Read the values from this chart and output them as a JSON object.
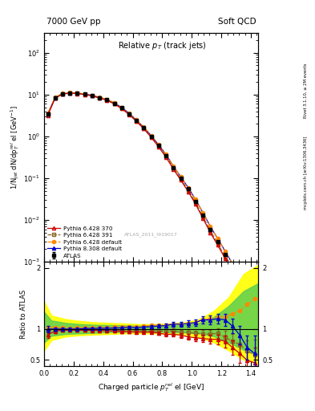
{
  "title_left": "7000 GeV pp",
  "title_right": "Soft QCD",
  "plot_title": "Relative $p_T$ (track jets)",
  "xlabel": "Charged particle $p_T^{rel}$ el [GeV]",
  "ylabel_main": "1/N$_{jet}$ dN/dp$_T^{rel}$ el [GeV$^{-1}$]",
  "ylabel_ratio": "Ratio to ATLAS",
  "watermark": "ATLAS_2011_I919017",
  "right_label": "mcplots.cern.ch [arXiv:1306.3436]",
  "right_label2": "Rivet 3.1.10, ≥ 2M events",
  "x_data": [
    0.025,
    0.075,
    0.125,
    0.175,
    0.225,
    0.275,
    0.325,
    0.375,
    0.425,
    0.475,
    0.525,
    0.575,
    0.625,
    0.675,
    0.725,
    0.775,
    0.825,
    0.875,
    0.925,
    0.975,
    1.025,
    1.075,
    1.125,
    1.175,
    1.225,
    1.275,
    1.325,
    1.375,
    1.425
  ],
  "atlas_y": [
    3.5,
    8.5,
    10.5,
    11.0,
    10.8,
    10.2,
    9.5,
    8.5,
    7.5,
    6.2,
    4.8,
    3.5,
    2.4,
    1.6,
    1.0,
    0.6,
    0.35,
    0.18,
    0.1,
    0.055,
    0.028,
    0.013,
    0.006,
    0.003,
    0.0015,
    0.0007,
    0.00035,
    0.00018,
    9e-05
  ],
  "atlas_yerr": [
    0.3,
    0.4,
    0.4,
    0.4,
    0.4,
    0.3,
    0.3,
    0.3,
    0.25,
    0.2,
    0.15,
    0.1,
    0.08,
    0.05,
    0.035,
    0.02,
    0.012,
    0.007,
    0.004,
    0.002,
    0.001,
    0.0005,
    0.0003,
    0.00015,
    8e-05,
    4e-05,
    2e-05,
    1e-05,
    6e-06
  ],
  "py6_370_y": [
    3.2,
    8.2,
    10.3,
    10.8,
    10.6,
    10.0,
    9.3,
    8.3,
    7.3,
    6.0,
    4.6,
    3.35,
    2.28,
    1.52,
    0.95,
    0.56,
    0.32,
    0.165,
    0.09,
    0.048,
    0.024,
    0.011,
    0.005,
    0.0025,
    0.0012,
    0.00055,
    0.00028,
    0.00014,
    6e-05
  ],
  "py6_391_y": [
    3.4,
    8.4,
    10.4,
    10.9,
    10.7,
    10.1,
    9.4,
    8.4,
    7.4,
    6.1,
    4.7,
    3.45,
    2.35,
    1.55,
    0.97,
    0.58,
    0.34,
    0.175,
    0.095,
    0.052,
    0.026,
    0.012,
    0.0055,
    0.0028,
    0.0013,
    0.0006,
    0.0003,
    0.00015,
    8e-05
  ],
  "py6_def_y": [
    3.6,
    8.7,
    10.7,
    11.2,
    11.0,
    10.4,
    9.7,
    8.7,
    7.7,
    6.4,
    5.0,
    3.65,
    2.5,
    1.68,
    1.06,
    0.64,
    0.375,
    0.195,
    0.108,
    0.06,
    0.031,
    0.015,
    0.007,
    0.0036,
    0.0018,
    0.0009,
    0.00046,
    0.00025,
    0.000135
  ],
  "py8_def_y": [
    3.5,
    8.5,
    10.5,
    11.0,
    10.8,
    10.3,
    9.6,
    8.6,
    7.6,
    6.3,
    4.9,
    3.6,
    2.45,
    1.65,
    1.04,
    0.63,
    0.37,
    0.195,
    0.108,
    0.06,
    0.031,
    0.015,
    0.007,
    0.0036,
    0.0018,
    0.0009,
    0.00046,
    0.00025,
    0.000135
  ],
  "ratio_py6_370": [
    0.91,
    0.965,
    0.981,
    0.982,
    0.981,
    0.98,
    0.979,
    0.976,
    0.973,
    0.968,
    0.958,
    0.957,
    0.95,
    0.95,
    0.95,
    0.933,
    0.914,
    0.917,
    0.9,
    0.873,
    0.857,
    0.846,
    0.833,
    0.833,
    0.8,
    0.7,
    0.6,
    0.49,
    0.45
  ],
  "ratio_py6_391": [
    0.97,
    0.988,
    0.99,
    0.991,
    0.991,
    0.99,
    0.989,
    0.988,
    0.987,
    0.984,
    0.979,
    0.986,
    0.979,
    0.969,
    0.97,
    0.967,
    0.971,
    0.972,
    0.95,
    0.945,
    0.929,
    0.923,
    0.917,
    0.933,
    0.867,
    0.8,
    0.75,
    0.64,
    0.58
  ],
  "ratio_py6_def": [
    1.03,
    1.024,
    1.019,
    1.018,
    1.019,
    1.02,
    1.021,
    1.024,
    1.027,
    1.032,
    1.042,
    1.043,
    1.042,
    1.05,
    1.06,
    1.067,
    1.071,
    1.083,
    1.08,
    1.091,
    1.107,
    1.154,
    1.167,
    1.2,
    1.2,
    1.25,
    1.3,
    1.4,
    1.5
  ],
  "ratio_py8_def": [
    1.0,
    1.0,
    1.0,
    1.0,
    1.0,
    1.01,
    1.011,
    1.012,
    1.013,
    1.016,
    1.021,
    1.029,
    1.021,
    1.031,
    1.04,
    1.05,
    1.057,
    1.083,
    1.08,
    1.091,
    1.107,
    1.154,
    1.15,
    1.17,
    1.15,
    1.05,
    0.9,
    0.7,
    0.6
  ],
  "ratio_yerr_370": [
    0.05,
    0.03,
    0.02,
    0.02,
    0.02,
    0.02,
    0.02,
    0.02,
    0.02,
    0.02,
    0.02,
    0.02,
    0.02,
    0.02,
    0.02,
    0.03,
    0.03,
    0.04,
    0.04,
    0.05,
    0.05,
    0.06,
    0.07,
    0.08,
    0.1,
    0.12,
    0.15,
    0.18,
    0.25
  ],
  "ratio_yerr_391": [
    0.05,
    0.03,
    0.02,
    0.02,
    0.02,
    0.02,
    0.02,
    0.02,
    0.02,
    0.02,
    0.02,
    0.02,
    0.02,
    0.02,
    0.02,
    0.03,
    0.03,
    0.04,
    0.04,
    0.05,
    0.05,
    0.06,
    0.07,
    0.08,
    0.1,
    0.12,
    0.15,
    0.18,
    0.25
  ],
  "ratio_yerr_py8": [
    0.05,
    0.03,
    0.02,
    0.02,
    0.02,
    0.02,
    0.02,
    0.02,
    0.02,
    0.02,
    0.02,
    0.02,
    0.02,
    0.02,
    0.02,
    0.03,
    0.03,
    0.04,
    0.04,
    0.05,
    0.05,
    0.06,
    0.07,
    0.08,
    0.1,
    0.12,
    0.15,
    0.2,
    0.3
  ],
  "band_yellow_x": [
    0.0,
    0.05,
    0.15,
    0.25,
    0.35,
    0.45,
    0.55,
    0.65,
    0.75,
    0.85,
    0.95,
    1.05,
    1.15,
    1.25,
    1.35,
    1.45
  ],
  "band_yellow_lo": [
    0.65,
    0.82,
    0.88,
    0.9,
    0.91,
    0.92,
    0.93,
    0.93,
    0.93,
    0.92,
    0.9,
    0.87,
    0.78,
    0.65,
    0.5,
    0.44
  ],
  "band_yellow_hi": [
    1.45,
    1.22,
    1.16,
    1.13,
    1.11,
    1.1,
    1.09,
    1.08,
    1.08,
    1.09,
    1.11,
    1.16,
    1.3,
    1.52,
    1.9,
    2.05
  ],
  "band_green_x": [
    0.0,
    0.05,
    0.15,
    0.25,
    0.35,
    0.45,
    0.55,
    0.65,
    0.75,
    0.85,
    0.95,
    1.05,
    1.15,
    1.25,
    1.35,
    1.45
  ],
  "band_green_lo": [
    0.78,
    0.89,
    0.92,
    0.93,
    0.94,
    0.95,
    0.955,
    0.96,
    0.955,
    0.95,
    0.945,
    0.93,
    0.88,
    0.78,
    0.66,
    0.58
  ],
  "band_green_hi": [
    1.28,
    1.14,
    1.1,
    1.08,
    1.07,
    1.065,
    1.06,
    1.055,
    1.055,
    1.06,
    1.07,
    1.1,
    1.2,
    1.38,
    1.62,
    1.75
  ],
  "color_atlas": "#000000",
  "color_py6_370": "#cc0000",
  "color_py6_391": "#886622",
  "color_py6_def": "#ff8800",
  "color_py8_def": "#0000cc",
  "xlim": [
    0.0,
    1.45
  ],
  "ylim_main": [
    0.001,
    300
  ],
  "ylim_ratio": [
    0.4,
    2.1
  ],
  "ratio_yticks": [
    0.5,
    1.0,
    2.0
  ],
  "ratio_yticklabels": [
    "0.5",
    "1",
    "2"
  ]
}
